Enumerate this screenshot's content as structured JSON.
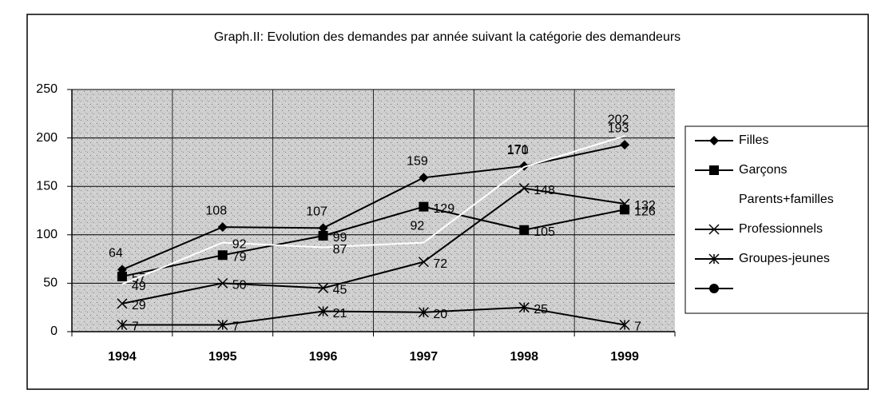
{
  "chart_data": {
    "type": "line",
    "title": "Graph.II: Evolution des demandes par année suivant la catégorie des demandeurs",
    "categories": [
      "1994",
      "1995",
      "1996",
      "1997",
      "1998",
      "1999"
    ],
    "ylim": [
      0,
      250
    ],
    "yticks": [
      0,
      50,
      100,
      150,
      200,
      250
    ],
    "grid": true,
    "legend": "right",
    "series": [
      {
        "name": "Filles",
        "color": "#000000",
        "marker": "diamond",
        "values": [
          64,
          108,
          107,
          159,
          171,
          193
        ]
      },
      {
        "name": "Garçons",
        "color": "#000000",
        "marker": "square",
        "values": [
          57,
          79,
          99,
          129,
          105,
          126
        ]
      },
      {
        "name": "Parents+familles",
        "color": "#ffffff",
        "marker": "none",
        "values": [
          49,
          92,
          87,
          92,
          170,
          202
        ]
      },
      {
        "name": "Professionnels",
        "color": "#000000",
        "marker": "x",
        "values": [
          29,
          50,
          45,
          72,
          148,
          132
        ]
      },
      {
        "name": "Groupes-jeunes",
        "color": "#000000",
        "marker": "asterisk",
        "values": [
          7,
          7,
          21,
          20,
          25,
          7
        ]
      }
    ]
  }
}
